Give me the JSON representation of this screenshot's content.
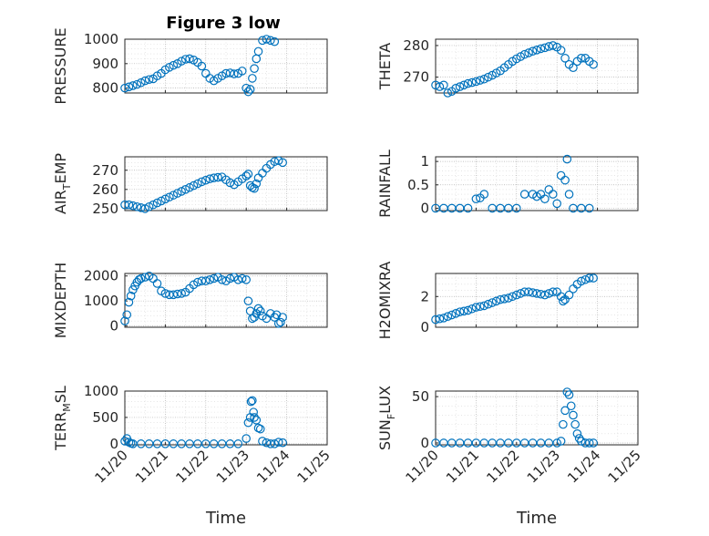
{
  "window": {
    "title": "Figure 3 low"
  },
  "chart_data": [
    {
      "type": "scatter",
      "ylabel": "PRESSURE",
      "xlabel": "",
      "xlim": [
        0,
        5
      ],
      "ylim": [
        780,
        1000
      ],
      "yticks": [
        800,
        900,
        1000
      ],
      "series": [
        {
          "x": [
            0.0,
            0.1,
            0.2,
            0.3,
            0.4,
            0.5,
            0.6,
            0.7,
            0.8,
            0.9,
            1.0,
            1.1,
            1.2,
            1.3,
            1.4,
            1.5,
            1.6,
            1.7,
            1.8,
            1.9,
            2.0,
            2.1,
            2.2,
            2.3,
            2.4,
            2.5,
            2.6,
            2.7,
            2.8,
            2.9,
            3.0,
            3.05,
            3.1,
            3.15,
            3.2,
            3.25,
            3.3,
            3.4,
            3.5,
            3.6,
            3.7
          ],
          "y": [
            800,
            805,
            810,
            815,
            822,
            830,
            835,
            838,
            850,
            860,
            875,
            885,
            893,
            900,
            910,
            918,
            920,
            915,
            905,
            890,
            860,
            840,
            830,
            840,
            850,
            860,
            862,
            858,
            860,
            870,
            800,
            785,
            795,
            840,
            880,
            920,
            950,
            995,
            1000,
            995,
            990
          ]
        }
      ]
    },
    {
      "type": "scatter",
      "ylabel": "THETA",
      "xlabel": "",
      "xlim": [
        0,
        5
      ],
      "ylim": [
        265,
        282
      ],
      "yticks": [
        270,
        280
      ],
      "series": [
        {
          "x": [
            0.0,
            0.1,
            0.2,
            0.3,
            0.4,
            0.5,
            0.6,
            0.7,
            0.8,
            0.9,
            1.0,
            1.1,
            1.2,
            1.3,
            1.4,
            1.5,
            1.6,
            1.7,
            1.8,
            1.9,
            2.0,
            2.1,
            2.2,
            2.3,
            2.4,
            2.5,
            2.6,
            2.7,
            2.8,
            2.9,
            3.0,
            3.1,
            3.2,
            3.3,
            3.4,
            3.5,
            3.6,
            3.7,
            3.8,
            3.9
          ],
          "y": [
            267.5,
            267,
            267.5,
            265,
            265.5,
            266.5,
            267,
            267.5,
            268,
            268.3,
            268.6,
            269,
            269.4,
            270,
            270.6,
            271.3,
            272,
            273,
            274,
            275,
            275.8,
            276.5,
            277.2,
            277.7,
            278.2,
            278.6,
            279,
            279.3,
            279.7,
            280,
            279.5,
            278.5,
            276,
            274,
            273,
            275,
            276,
            276,
            275,
            274
          ]
        }
      ]
    },
    {
      "type": "scatter",
      "ylabel": "AIR_TEMP",
      "xlabel": "",
      "xlim": [
        0,
        5
      ],
      "ylim": [
        249,
        277
      ],
      "yticks": [
        250,
        260,
        270
      ],
      "series": [
        {
          "x": [
            0.0,
            0.1,
            0.2,
            0.3,
            0.4,
            0.5,
            0.6,
            0.7,
            0.8,
            0.9,
            1.0,
            1.1,
            1.2,
            1.3,
            1.4,
            1.5,
            1.6,
            1.7,
            1.8,
            1.9,
            2.0,
            2.1,
            2.2,
            2.3,
            2.4,
            2.5,
            2.6,
            2.7,
            2.8,
            2.9,
            3.0,
            3.05,
            3.1,
            3.15,
            3.2,
            3.25,
            3.3,
            3.4,
            3.5,
            3.6,
            3.7,
            3.8,
            3.9
          ],
          "y": [
            252,
            252,
            251.5,
            251,
            250.5,
            250,
            251,
            252,
            253,
            254,
            255,
            256,
            257,
            258,
            259,
            260,
            261,
            262,
            263,
            264,
            264.8,
            265.5,
            266,
            266.3,
            266.5,
            265,
            263.5,
            262.5,
            264,
            265.5,
            267,
            268,
            262,
            261,
            260.5,
            263,
            266,
            268.5,
            271,
            273,
            274.5,
            275,
            274
          ]
        }
      ]
    },
    {
      "type": "scatter",
      "ylabel": "RAINFALL",
      "xlabel": "",
      "xlim": [
        0,
        5
      ],
      "ylim": [
        -0.05,
        1.1
      ],
      "yticks": [
        0,
        0.5,
        1
      ],
      "series": [
        {
          "x": [
            0.0,
            0.2,
            0.4,
            0.6,
            0.8,
            1.0,
            1.1,
            1.2,
            1.4,
            1.6,
            1.8,
            2.0,
            2.2,
            2.4,
            2.5,
            2.6,
            2.7,
            2.8,
            2.9,
            3.0,
            3.1,
            3.2,
            3.25,
            3.3,
            3.4,
            3.6,
            3.8
          ],
          "y": [
            0,
            0,
            0,
            0,
            0,
            0.2,
            0.22,
            0.3,
            0,
            0,
            0,
            0,
            0.3,
            0.3,
            0.25,
            0.3,
            0.2,
            0.4,
            0.3,
            0.1,
            0.7,
            0.6,
            1.05,
            0.3,
            0,
            0,
            0
          ]
        }
      ]
    },
    {
      "type": "scatter",
      "ylabel": "MIXDEPTH",
      "xlabel": "",
      "xlim": [
        0,
        5
      ],
      "ylim": [
        -50,
        2100
      ],
      "yticks": [
        0,
        1000,
        2000
      ],
      "series": [
        {
          "x": [
            0.0,
            0.05,
            0.1,
            0.15,
            0.2,
            0.25,
            0.3,
            0.35,
            0.4,
            0.5,
            0.6,
            0.7,
            0.8,
            0.9,
            1.0,
            1.1,
            1.2,
            1.3,
            1.4,
            1.5,
            1.6,
            1.7,
            1.8,
            1.9,
            2.0,
            2.1,
            2.2,
            2.3,
            2.4,
            2.5,
            2.6,
            2.7,
            2.8,
            2.9,
            3.0,
            3.05,
            3.1,
            3.15,
            3.2,
            3.25,
            3.3,
            3.35,
            3.4,
            3.5,
            3.6,
            3.7,
            3.75,
            3.8,
            3.85,
            3.9
          ],
          "y": [
            200,
            450,
            950,
            1200,
            1450,
            1600,
            1750,
            1850,
            1900,
            1950,
            2000,
            1900,
            1700,
            1400,
            1300,
            1250,
            1250,
            1280,
            1300,
            1350,
            1500,
            1650,
            1750,
            1800,
            1800,
            1850,
            1900,
            1950,
            1850,
            1800,
            1900,
            1950,
            1850,
            1900,
            1850,
            1000,
            600,
            300,
            350,
            500,
            700,
            600,
            400,
            300,
            500,
            350,
            450,
            100,
            150,
            350
          ]
        }
      ]
    },
    {
      "type": "scatter",
      "ylabel": "H2OMIXRA",
      "xlabel": "",
      "xlim": [
        0,
        5
      ],
      "ylim": [
        0,
        3.5
      ],
      "yticks": [
        0,
        2
      ],
      "series": [
        {
          "x": [
            0.0,
            0.1,
            0.2,
            0.3,
            0.4,
            0.5,
            0.6,
            0.7,
            0.8,
            0.9,
            1.0,
            1.1,
            1.2,
            1.3,
            1.4,
            1.5,
            1.6,
            1.7,
            1.8,
            1.9,
            2.0,
            2.1,
            2.2,
            2.3,
            2.4,
            2.5,
            2.6,
            2.7,
            2.8,
            2.9,
            3.0,
            3.1,
            3.15,
            3.2,
            3.3,
            3.4,
            3.5,
            3.6,
            3.7,
            3.8,
            3.9
          ],
          "y": [
            0.5,
            0.55,
            0.6,
            0.7,
            0.8,
            0.9,
            1.0,
            1.05,
            1.1,
            1.2,
            1.3,
            1.35,
            1.4,
            1.5,
            1.6,
            1.7,
            1.8,
            1.85,
            1.9,
            2.0,
            2.1,
            2.2,
            2.3,
            2.3,
            2.25,
            2.2,
            2.15,
            2.1,
            2.2,
            2.3,
            2.3,
            2.0,
            1.7,
            1.8,
            2.1,
            2.5,
            2.8,
            3.0,
            3.1,
            3.2,
            3.2
          ]
        }
      ]
    },
    {
      "type": "scatter",
      "ylabel": "TERR_MSL",
      "xlabel": "Time",
      "xlim": [
        0,
        5
      ],
      "ylim": [
        -20,
        1000
      ],
      "yticks": [
        0,
        500,
        1000
      ],
      "xticks": [
        "11/20",
        "11/21",
        "11/22",
        "11/23",
        "11/24",
        "11/25"
      ],
      "series": [
        {
          "x": [
            0.0,
            0.05,
            0.1,
            0.15,
            0.2,
            0.4,
            0.6,
            0.8,
            1.0,
            1.2,
            1.4,
            1.6,
            1.8,
            2.0,
            2.2,
            2.4,
            2.6,
            2.8,
            3.0,
            3.05,
            3.1,
            3.12,
            3.15,
            3.18,
            3.2,
            3.25,
            3.3,
            3.35,
            3.4,
            3.5,
            3.6,
            3.7,
            3.8,
            3.9
          ],
          "y": [
            50,
            100,
            30,
            10,
            0,
            0,
            0,
            0,
            0,
            0,
            0,
            0,
            0,
            0,
            0,
            0,
            0,
            0,
            100,
            400,
            500,
            800,
            820,
            600,
            500,
            450,
            300,
            280,
            50,
            20,
            0,
            0,
            30,
            20
          ]
        }
      ]
    },
    {
      "type": "scatter",
      "ylabel": "SUN_FLUX",
      "xlabel": "Time",
      "xlim": [
        0,
        5
      ],
      "ylim": [
        -2,
        56
      ],
      "yticks": [
        0,
        50
      ],
      "xticks": [
        "11/20",
        "11/21",
        "11/22",
        "11/23",
        "11/24",
        "11/25"
      ],
      "series": [
        {
          "x": [
            0.0,
            0.2,
            0.4,
            0.6,
            0.8,
            1.0,
            1.2,
            1.4,
            1.6,
            1.8,
            2.0,
            2.2,
            2.4,
            2.6,
            2.8,
            3.0,
            3.1,
            3.15,
            3.2,
            3.25,
            3.3,
            3.35,
            3.4,
            3.45,
            3.5,
            3.55,
            3.6,
            3.7,
            3.8,
            3.9
          ],
          "y": [
            0,
            0,
            0,
            0,
            0,
            0,
            0,
            0,
            0,
            0,
            0,
            0,
            0,
            0,
            0,
            0,
            2,
            20,
            35,
            55,
            52,
            40,
            30,
            20,
            10,
            5,
            2,
            0,
            0,
            0
          ]
        }
      ]
    }
  ]
}
